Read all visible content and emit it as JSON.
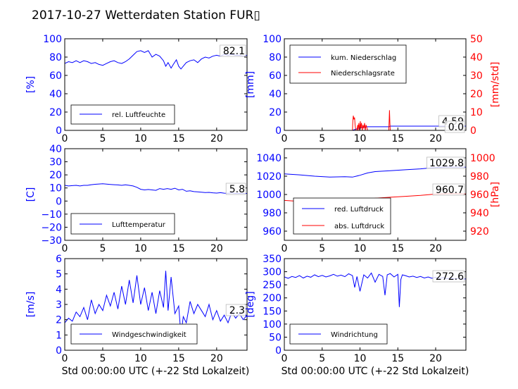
{
  "title": "2017-10-27 Wetterdaten Station FUR▯",
  "xlabel": "Std 00:00:00 UTC (+-22 Std Lokalzeit)",
  "x_ticks": [
    "0",
    "5",
    "10",
    "15",
    "20"
  ],
  "colors": {
    "primary": "#0000ff",
    "secondary": "#ff0000",
    "axis": "#000000"
  },
  "chart_data": [
    {
      "type": "line",
      "ylabel": "[%]",
      "xlim": [
        0,
        24
      ],
      "ylim": [
        0,
        100
      ],
      "yticks": [
        "0",
        "20",
        "40",
        "60",
        "80",
        "100"
      ],
      "legend": [
        "rel. Luftfeuchte"
      ],
      "legend_position": "lower-left",
      "annotation": "82.1",
      "series": [
        {
          "name": "rel. Luftfeuchte",
          "color": "#0000ff",
          "x": [
            0,
            0.5,
            1,
            1.5,
            2,
            2.5,
            3,
            3.5,
            4,
            4.5,
            5,
            5.5,
            6,
            6.5,
            7,
            7.5,
            8,
            8.5,
            9,
            9.5,
            10,
            10.5,
            11,
            11.5,
            12,
            12.5,
            13,
            13.3,
            13.6,
            14,
            14.3,
            14.7,
            15,
            15.3,
            15.7,
            16,
            16.5,
            17,
            17.5,
            18,
            18.5,
            19,
            19.5,
            20,
            20.5,
            21,
            21.5,
            22,
            22.5,
            23,
            23.5,
            24
          ],
          "y": [
            73,
            75,
            74,
            76,
            74,
            76,
            75,
            73,
            74,
            72,
            71,
            73,
            75,
            76,
            74,
            73,
            75,
            78,
            82,
            86,
            87,
            85,
            87,
            80,
            83,
            81,
            76,
            70,
            74,
            68,
            72,
            77,
            70,
            67,
            71,
            74,
            76,
            77,
            74,
            78,
            80,
            79,
            81,
            82,
            81,
            83,
            82,
            83,
            82,
            82,
            81,
            82
          ]
        }
      ]
    },
    {
      "type": "line",
      "ylabel": "[mm]",
      "ylabel_right": "[mm/std]",
      "xlim": [
        0,
        24
      ],
      "ylim": [
        0,
        100
      ],
      "ylim_right": [
        0,
        50
      ],
      "yticks": [
        "0",
        "20",
        "40",
        "60",
        "80",
        "100"
      ],
      "yticks_right": [
        "0",
        "10",
        "20",
        "30",
        "40",
        "50"
      ],
      "legend": [
        "kum. Niederschlag",
        "Niederschlagsrate"
      ],
      "legend_position": "upper-left",
      "annotations": [
        "4.59",
        "0.0"
      ],
      "series": [
        {
          "name": "kum. Niederschlag",
          "axis": "left",
          "color": "#0000ff",
          "x": [
            0,
            9.0,
            9.2,
            9.5,
            10.0,
            10.5,
            11,
            13.8,
            14.0,
            16,
            20,
            24
          ],
          "y": [
            0,
            0,
            0.6,
            1.5,
            2.8,
            3.7,
            3.9,
            3.9,
            4.59,
            4.59,
            4.59,
            4.59
          ]
        },
        {
          "name": "Niederschlagsrate",
          "axis": "right",
          "color": "#ff0000",
          "x": [
            0,
            9.0,
            9.05,
            9.12,
            9.2,
            9.28,
            9.35,
            9.45,
            9.6,
            9.7,
            9.75,
            9.85,
            9.95,
            10.05,
            10.1,
            10.2,
            10.3,
            10.4,
            10.5,
            10.6,
            10.7,
            10.8,
            11.0,
            13.8,
            13.85,
            13.9,
            13.95,
            14.0,
            24
          ],
          "y": [
            0,
            0,
            5,
            8,
            6,
            7,
            3,
            0,
            0,
            3,
            0,
            4,
            0,
            5,
            1,
            4,
            0,
            3,
            1,
            4,
            0,
            3,
            0,
            0,
            5,
            11,
            4,
            0,
            0
          ]
        }
      ]
    },
    {
      "type": "line",
      "ylabel": "[C]",
      "xlim": [
        0,
        24
      ],
      "ylim": [
        -30,
        40
      ],
      "yticks": [
        "−30",
        "−20",
        "−10",
        "0",
        "10",
        "20",
        "30",
        "40"
      ],
      "legend": [
        "Lufttemperatur"
      ],
      "legend_position": "lower-left",
      "annotation": "5.8",
      "series": [
        {
          "name": "Lufttemperatur",
          "color": "#0000ff",
          "x": [
            0,
            0.5,
            1,
            1.5,
            2,
            2.5,
            3,
            3.5,
            4,
            4.5,
            5,
            5.5,
            6,
            6.5,
            7,
            7.5,
            8,
            8.5,
            9,
            9.5,
            10,
            10.5,
            11,
            11.5,
            12,
            12.5,
            13,
            13.5,
            14,
            14.5,
            15,
            15.5,
            16,
            16.5,
            17,
            17.5,
            18,
            18.5,
            19,
            19.5,
            20,
            20.5,
            21,
            21.5,
            22,
            22.5,
            23,
            23.5,
            24
          ],
          "y": [
            12,
            11.5,
            11.8,
            12,
            11.5,
            12,
            12,
            12.5,
            12.8,
            13,
            13.2,
            12.9,
            12.7,
            12.5,
            12.3,
            12,
            12.4,
            12,
            11.5,
            10.5,
            9,
            8.5,
            8.8,
            8.5,
            8.2,
            9.5,
            9,
            9.5,
            9,
            9.8,
            8.5,
            9,
            7.5,
            7.8,
            7.2,
            7,
            6.8,
            6.5,
            6.6,
            6.3,
            6.1,
            6.4,
            6,
            5.9,
            6.2,
            5.8,
            5.9,
            5.8,
            5.8
          ]
        }
      ]
    },
    {
      "type": "line",
      "ylabel_right": "[hPa]",
      "xlim": [
        0,
        24
      ],
      "ylim": [
        950,
        1050
      ],
      "ylim_right": [
        910,
        1010
      ],
      "yticks": [
        "960",
        "980",
        "1000",
        "1020",
        "1040"
      ],
      "yticks_right": [
        "920",
        "940",
        "960",
        "980",
        "1000"
      ],
      "legend": [
        "red. Luftdruck",
        "abs. Luftdruck"
      ],
      "legend_position": "lower-left",
      "annotations": [
        "1029.8",
        "960.7"
      ],
      "series": [
        {
          "name": "red. Luftdruck",
          "axis": "left",
          "color": "#0000ff",
          "x": [
            0,
            2,
            4,
            6,
            8,
            9,
            10,
            11,
            12,
            14,
            16,
            18,
            20,
            22,
            24
          ],
          "y": [
            1022.5,
            1021.5,
            1020,
            1019,
            1019.5,
            1019,
            1021,
            1023.5,
            1025,
            1026,
            1027,
            1028,
            1029.5,
            1030,
            1029.8
          ]
        },
        {
          "name": "abs. Luftdruck",
          "axis": "right",
          "color": "#ff0000",
          "x": [
            0,
            2,
            4,
            6,
            8,
            9,
            10,
            11,
            12,
            14,
            16,
            18,
            20,
            22,
            24
          ],
          "y": [
            953.5,
            952.5,
            951,
            950,
            950.5,
            950,
            952,
            954.5,
            956,
            957,
            958,
            959,
            960.5,
            961,
            960.7
          ]
        }
      ]
    },
    {
      "type": "line",
      "ylabel": "[m/s]",
      "xlim": [
        0,
        24
      ],
      "ylim": [
        0,
        6
      ],
      "yticks": [
        "0",
        "1",
        "2",
        "3",
        "4",
        "5",
        "6"
      ],
      "legend": [
        "Windgeschwindigkeit"
      ],
      "legend_position": "lower-left",
      "annotation": "2.3",
      "series": [
        {
          "name": "Windgeschwindigkeit",
          "color": "#0000ff",
          "x": [
            0,
            0.5,
            1,
            1.5,
            2,
            2.5,
            3,
            3.5,
            4,
            4.5,
            5,
            5.5,
            6,
            6.5,
            7,
            7.5,
            8,
            8.5,
            9,
            9.5,
            10,
            10.5,
            11,
            11.5,
            12,
            12.5,
            13,
            13.3,
            13.6,
            14,
            14.5,
            15,
            15.3,
            15.6,
            16,
            16.5,
            17,
            17.5,
            18,
            18.5,
            19,
            19.5,
            20,
            20.5,
            21,
            21.5,
            22,
            22.5,
            23,
            23.5,
            24
          ],
          "y": [
            1.8,
            2.1,
            1.9,
            2.5,
            2.2,
            2.8,
            2.0,
            3.3,
            2.4,
            3.0,
            2.6,
            3.6,
            2.9,
            3.8,
            2.7,
            4.2,
            3.0,
            4.6,
            3.1,
            4.9,
            3.0,
            4.1,
            2.6,
            3.8,
            2.4,
            3.9,
            2.8,
            5.2,
            2.6,
            4.8,
            2.4,
            2.9,
            1.0,
            2.2,
            1.8,
            3.2,
            2.4,
            3.0,
            2.6,
            2.2,
            3.0,
            2.0,
            2.6,
            1.9,
            2.3,
            1.8,
            2.5,
            2.1,
            2.4,
            2.0,
            2.3
          ]
        }
      ]
    },
    {
      "type": "line",
      "ylabel": "[deg]",
      "xlim": [
        0,
        24
      ],
      "ylim": [
        0,
        350
      ],
      "yticks": [
        "0",
        "50",
        "100",
        "150",
        "200",
        "250",
        "300",
        "350"
      ],
      "legend": [
        "Windrichtung"
      ],
      "legend_position": "lower-left",
      "annotation": "272.6",
      "series": [
        {
          "name": "Windrichtung",
          "color": "#0000ff",
          "x": [
            0,
            0.5,
            1,
            1.5,
            2,
            2.5,
            3,
            3.5,
            4,
            4.5,
            5,
            5.5,
            6,
            6.5,
            7,
            7.5,
            8,
            8.5,
            9,
            9.3,
            9.6,
            10,
            10.5,
            11,
            11.5,
            12,
            12.5,
            13,
            13.3,
            13.6,
            14,
            14.5,
            15,
            15.2,
            15.4,
            15.6,
            16,
            16.5,
            17,
            17.5,
            18,
            18.5,
            19,
            19.5,
            20,
            20.5,
            21,
            21.5,
            22,
            22.5,
            23,
            23.5,
            24
          ],
          "y": [
            280,
            275,
            282,
            278,
            285,
            276,
            283,
            279,
            288,
            281,
            286,
            280,
            284,
            290,
            283,
            287,
            281,
            292,
            285,
            240,
            282,
            225,
            288,
            276,
            295,
            260,
            290,
            282,
            210,
            288,
            293,
            280,
            290,
            165,
            270,
            288,
            285,
            280,
            283,
            278,
            282,
            276,
            280,
            275,
            279,
            274,
            278,
            273,
            276,
            272,
            275,
            271,
            272.6
          ]
        }
      ]
    }
  ]
}
